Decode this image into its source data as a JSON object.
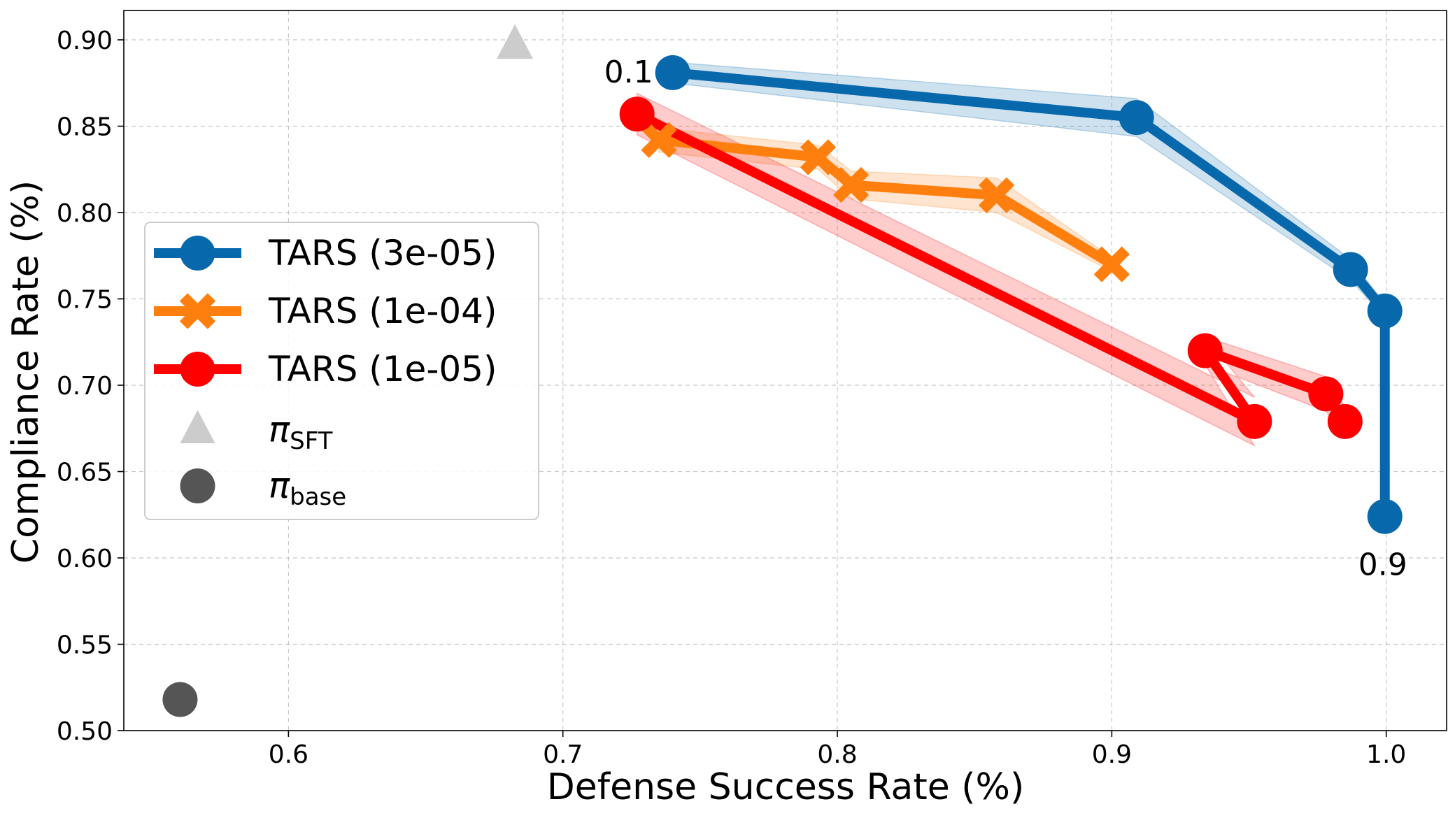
{
  "chart_data": {
    "type": "line",
    "title": "",
    "xlabel": "Defense Success Rate (%)",
    "ylabel": "Compliance Rate (%)",
    "xlim": [
      0.54,
      1.022
    ],
    "ylim": [
      0.5,
      0.917
    ],
    "grid": true,
    "legend_position": "center-left",
    "xticks": [
      0.6,
      0.7,
      0.8,
      0.9,
      1.0
    ],
    "xtick_labels": [
      "0.6",
      "0.7",
      "0.8",
      "0.9",
      "1.0"
    ],
    "yticks": [
      0.5,
      0.55,
      0.6,
      0.65,
      0.7,
      0.75,
      0.8,
      0.85,
      0.9
    ],
    "ytick_labels": [
      "0.50",
      "0.55",
      "0.60",
      "0.65",
      "0.70",
      "0.75",
      "0.80",
      "0.85",
      "0.90"
    ],
    "series": [
      {
        "name": "TARS (3e-05)",
        "color": "#0868ac",
        "marker": "circle",
        "points": [
          {
            "x": 0.74,
            "y": 0.881,
            "band": 0.006
          },
          {
            "x": 0.909,
            "y": 0.855,
            "band": 0.011
          },
          {
            "x": 0.987,
            "y": 0.767,
            "band": 0.006
          },
          {
            "x": 0.9995,
            "y": 0.743,
            "band": 0.004
          },
          {
            "x": 0.9995,
            "y": 0.624,
            "band": 0.002
          }
        ]
      },
      {
        "name": "TARS (1e-04)",
        "color": "#ff7f0e",
        "marker": "x",
        "points": [
          {
            "x": 0.735,
            "y": 0.842,
            "band": 0.007
          },
          {
            "x": 0.793,
            "y": 0.832,
            "band": 0.007
          },
          {
            "x": 0.805,
            "y": 0.816,
            "band": 0.008
          },
          {
            "x": 0.858,
            "y": 0.81,
            "band": 0.01
          },
          {
            "x": 0.9,
            "y": 0.77,
            "band": 0.004
          }
        ]
      },
      {
        "name": "TARS (1e-05)",
        "color": "#ff0000",
        "marker": "circle",
        "points": [
          {
            "x": 0.727,
            "y": 0.857,
            "band": 0.012
          },
          {
            "x": 0.952,
            "y": 0.679,
            "band": 0.014
          },
          {
            "x": 0.934,
            "y": 0.72,
            "band": 0.008
          },
          {
            "x": 0.978,
            "y": 0.695,
            "band": 0.01
          },
          {
            "x": 0.985,
            "y": 0.679,
            "band": 0.008
          }
        ]
      }
    ],
    "reference_points": [
      {
        "name": "π_SFT",
        "legend_symbol": "π",
        "legend_subscript": "SFT",
        "color": "#cccccc",
        "marker": "triangle",
        "x": 0.6825,
        "y": 0.897
      },
      {
        "name": "π_base",
        "legend_symbol": "π",
        "legend_subscript": "base",
        "color": "#555555",
        "marker": "circle",
        "x": 0.5605,
        "y": 0.518
      }
    ],
    "annotations": [
      {
        "text": "0.1",
        "x": 0.74,
        "y": 0.881
      },
      {
        "text": "0.9",
        "x": 0.9995,
        "y": 0.624
      }
    ]
  }
}
